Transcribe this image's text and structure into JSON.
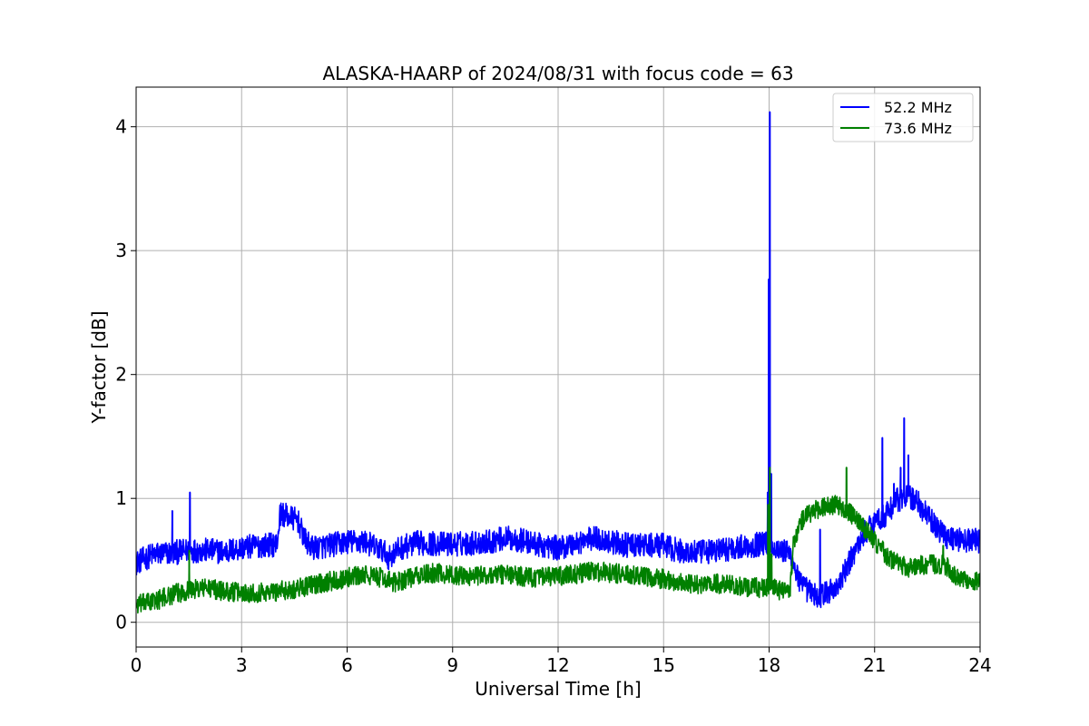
{
  "chart_data": {
    "type": "line",
    "title": "ALASKA-HAARP of 2024/08/31 with focus code = 63",
    "xlabel": "Universal Time [h]",
    "ylabel": "Y-factor [dB]",
    "xlim": [
      0,
      24
    ],
    "ylim": [
      -0.2,
      4.32
    ],
    "xticks": [
      0,
      3,
      6,
      9,
      12,
      15,
      18,
      21,
      24
    ],
    "yticks": [
      0,
      1,
      2,
      3,
      4
    ],
    "grid": true,
    "legend_position": "top-right",
    "series": [
      {
        "name": "  52.2 MHz",
        "color": "#0000ff",
        "noise_amplitude": 0.2,
        "points": [
          [
            0.0,
            0.48
          ],
          [
            0.5,
            0.55
          ],
          [
            1.0,
            0.56
          ],
          [
            1.5,
            0.58
          ],
          [
            2.0,
            0.58
          ],
          [
            2.5,
            0.57
          ],
          [
            3.0,
            0.6
          ],
          [
            3.5,
            0.62
          ],
          [
            4.0,
            0.63
          ],
          [
            4.1,
            0.88
          ],
          [
            4.6,
            0.82
          ],
          [
            4.8,
            0.66
          ],
          [
            5.0,
            0.6
          ],
          [
            5.5,
            0.62
          ],
          [
            6.0,
            0.65
          ],
          [
            6.5,
            0.65
          ],
          [
            7.0,
            0.58
          ],
          [
            7.2,
            0.52
          ],
          [
            7.5,
            0.6
          ],
          [
            8.0,
            0.64
          ],
          [
            9.0,
            0.63
          ],
          [
            10.0,
            0.65
          ],
          [
            10.5,
            0.68
          ],
          [
            11.0,
            0.66
          ],
          [
            11.5,
            0.62
          ],
          [
            12.0,
            0.6
          ],
          [
            12.5,
            0.64
          ],
          [
            13.0,
            0.68
          ],
          [
            13.5,
            0.65
          ],
          [
            14.0,
            0.62
          ],
          [
            15.0,
            0.62
          ],
          [
            15.5,
            0.57
          ],
          [
            16.0,
            0.56
          ],
          [
            16.5,
            0.58
          ],
          [
            17.0,
            0.6
          ],
          [
            17.5,
            0.62
          ],
          [
            17.9,
            0.64
          ],
          [
            18.2,
            0.6
          ],
          [
            18.6,
            0.55
          ],
          [
            18.9,
            0.3
          ],
          [
            19.4,
            0.2
          ],
          [
            19.7,
            0.25
          ],
          [
            20.0,
            0.3
          ],
          [
            20.3,
            0.5
          ],
          [
            20.7,
            0.72
          ],
          [
            21.0,
            0.82
          ],
          [
            21.3,
            0.86
          ],
          [
            21.6,
            0.98
          ],
          [
            21.9,
            1.02
          ],
          [
            22.2,
            0.98
          ],
          [
            22.6,
            0.82
          ],
          [
            23.0,
            0.7
          ],
          [
            23.5,
            0.66
          ],
          [
            24.0,
            0.66
          ]
        ],
        "spikes": [
          [
            1.03,
            0.9
          ],
          [
            1.53,
            1.05
          ],
          [
            17.96,
            1.05
          ],
          [
            17.99,
            2.77
          ],
          [
            18.02,
            4.12
          ],
          [
            18.06,
            1.2
          ],
          [
            19.45,
            0.75
          ],
          [
            21.22,
            1.49
          ],
          [
            21.55,
            1.12
          ],
          [
            21.74,
            1.25
          ],
          [
            21.84,
            1.65
          ],
          [
            21.96,
            1.35
          ]
        ]
      },
      {
        "name": "  73.6 MHz",
        "color": "#008000",
        "noise_amplitude": 0.16,
        "points": [
          [
            0.0,
            0.14
          ],
          [
            0.5,
            0.17
          ],
          [
            1.0,
            0.22
          ],
          [
            1.5,
            0.26
          ],
          [
            2.0,
            0.28
          ],
          [
            2.5,
            0.25
          ],
          [
            3.0,
            0.24
          ],
          [
            3.5,
            0.24
          ],
          [
            4.0,
            0.25
          ],
          [
            4.5,
            0.27
          ],
          [
            5.0,
            0.3
          ],
          [
            5.5,
            0.33
          ],
          [
            6.0,
            0.36
          ],
          [
            6.5,
            0.38
          ],
          [
            7.0,
            0.36
          ],
          [
            7.3,
            0.32
          ],
          [
            7.8,
            0.36
          ],
          [
            8.5,
            0.4
          ],
          [
            9.0,
            0.38
          ],
          [
            9.5,
            0.37
          ],
          [
            10.0,
            0.38
          ],
          [
            10.5,
            0.39
          ],
          [
            11.0,
            0.37
          ],
          [
            11.5,
            0.36
          ],
          [
            12.0,
            0.37
          ],
          [
            12.5,
            0.39
          ],
          [
            13.0,
            0.41
          ],
          [
            13.5,
            0.4
          ],
          [
            14.0,
            0.38
          ],
          [
            14.5,
            0.36
          ],
          [
            15.0,
            0.35
          ],
          [
            15.5,
            0.32
          ],
          [
            16.0,
            0.3
          ],
          [
            16.5,
            0.31
          ],
          [
            17.0,
            0.3
          ],
          [
            17.5,
            0.28
          ],
          [
            17.95,
            0.28
          ],
          [
            18.3,
            0.26
          ],
          [
            18.6,
            0.25
          ],
          [
            18.7,
            0.66
          ],
          [
            19.0,
            0.86
          ],
          [
            19.5,
            0.93
          ],
          [
            19.9,
            0.95
          ],
          [
            20.3,
            0.88
          ],
          [
            20.7,
            0.76
          ],
          [
            21.0,
            0.66
          ],
          [
            21.3,
            0.55
          ],
          [
            21.7,
            0.46
          ],
          [
            22.0,
            0.44
          ],
          [
            22.5,
            0.47
          ],
          [
            23.0,
            0.46
          ],
          [
            23.3,
            0.38
          ],
          [
            23.7,
            0.32
          ],
          [
            24.0,
            0.33
          ]
        ],
        "spikes": [
          [
            1.51,
            0.58
          ],
          [
            17.97,
            0.95
          ],
          [
            18.02,
            1.25
          ],
          [
            18.07,
            0.55
          ],
          [
            20.2,
            1.25
          ],
          [
            22.95,
            0.62
          ]
        ]
      }
    ]
  }
}
